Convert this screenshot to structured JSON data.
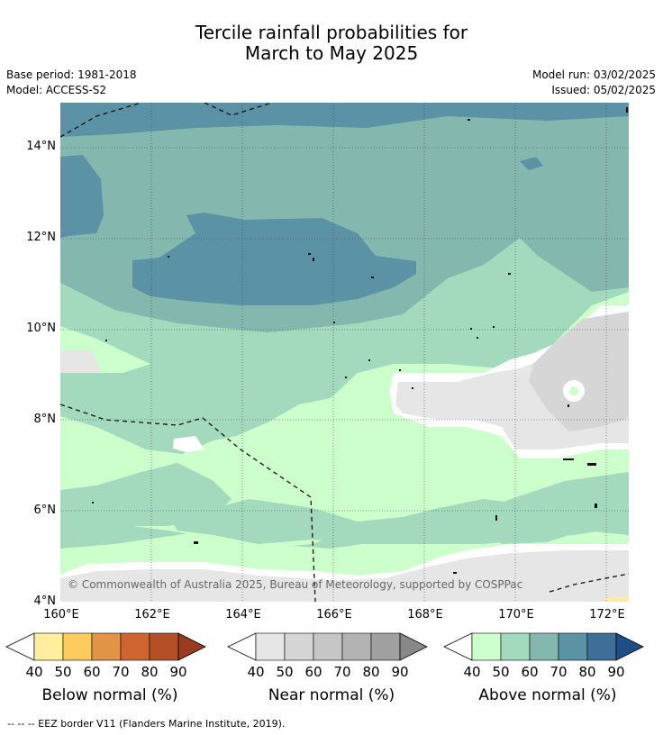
{
  "title": {
    "line1": "Tercile rainfall probabilities for",
    "line2": "March to May 2025"
  },
  "meta": {
    "base_period": "Base period: 1981-2018",
    "model": "Model: ACCESS-S2",
    "model_run": "Model run: 03/02/2025",
    "issued": "Issued: 05/02/2025"
  },
  "map": {
    "lat_labels": [
      "14°N",
      "12°N",
      "10°N",
      "8°N",
      "6°N",
      "4°N"
    ],
    "lon_labels": [
      "160°E",
      "162°E",
      "164°E",
      "166°E",
      "168°E",
      "170°E",
      "172°E"
    ],
    "copyright": "© Commonwealth of Australia 2025, Bureau of Meteorology, supported by COSPPac"
  },
  "colorbars": [
    {
      "title": "Below normal (%)",
      "ticks": [
        "40",
        "50",
        "60",
        "70",
        "80",
        "90"
      ],
      "colors": [
        "#ffeda0",
        "#fecc5c",
        "#e39446",
        "#cf6431",
        "#b54f28",
        "#9a3b21"
      ]
    },
    {
      "title": "Near normal (%)",
      "ticks": [
        "40",
        "50",
        "60",
        "70",
        "80",
        "90"
      ],
      "colors": [
        "#e6e6e6",
        "#d6d6d6",
        "#c6c6c6",
        "#b3b3b3",
        "#a0a0a0",
        "#888888"
      ]
    },
    {
      "title": "Above normal (%)",
      "ticks": [
        "40",
        "50",
        "60",
        "70",
        "80",
        "90"
      ],
      "colors": [
        "#ccffcc",
        "#a3d9bd",
        "#84b8ae",
        "#5b92a6",
        "#3d6f98",
        "#1d4f86"
      ]
    }
  ],
  "footnote": "--  --  -- EEZ border V11 (Flanders Marine Institute, 2019)."
}
